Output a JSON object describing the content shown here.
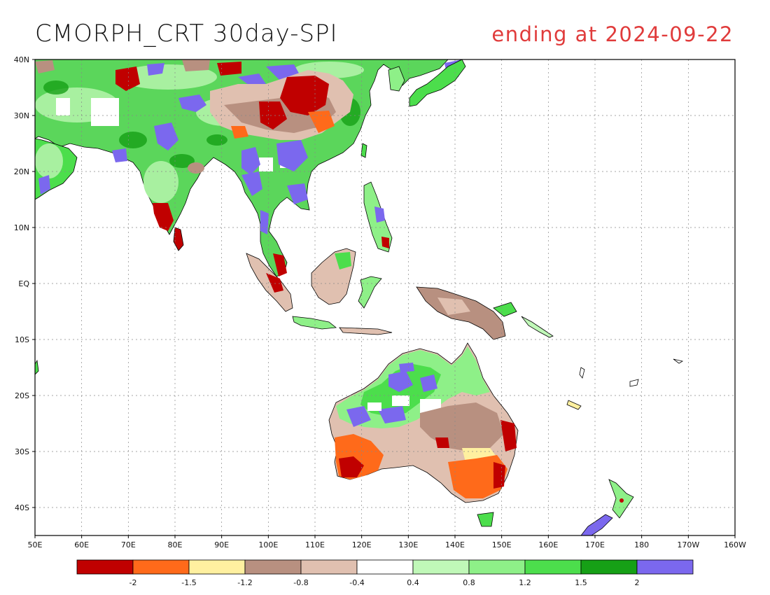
{
  "title": {
    "left": "CMORPH_CRT 30day-SPI",
    "right": "ending at 2024-09-22",
    "right_color": "#e03b3b"
  },
  "map": {
    "lon_labels": [
      "50E",
      "60E",
      "70E",
      "80E",
      "90E",
      "100E",
      "110E",
      "120E",
      "130E",
      "140E",
      "150E",
      "160E",
      "170E",
      "180",
      "170W",
      "160W"
    ],
    "lat_labels": [
      "40N",
      "30N",
      "20N",
      "10N",
      "EQ",
      "10S",
      "20S",
      "30S",
      "40S"
    ],
    "lon_range": [
      "50E",
      "160W"
    ],
    "lat_range": [
      "45S",
      "40N"
    ],
    "grid": "dotted"
  },
  "colorbar": {
    "colors": [
      "#c00000",
      "#ff6a1a",
      "#fff0a0",
      "#b89080",
      "#e0c0b0",
      "#ffffff",
      "#c0f8b8",
      "#8ef088",
      "#4cde4c",
      "#16a016",
      "#7b68ee"
    ],
    "labels": [
      "-2",
      "-1.5",
      "-1.2",
      "-0.8",
      "-0.4",
      "0.4",
      "0.8",
      "1.2",
      "1.5",
      "2"
    ]
  }
}
